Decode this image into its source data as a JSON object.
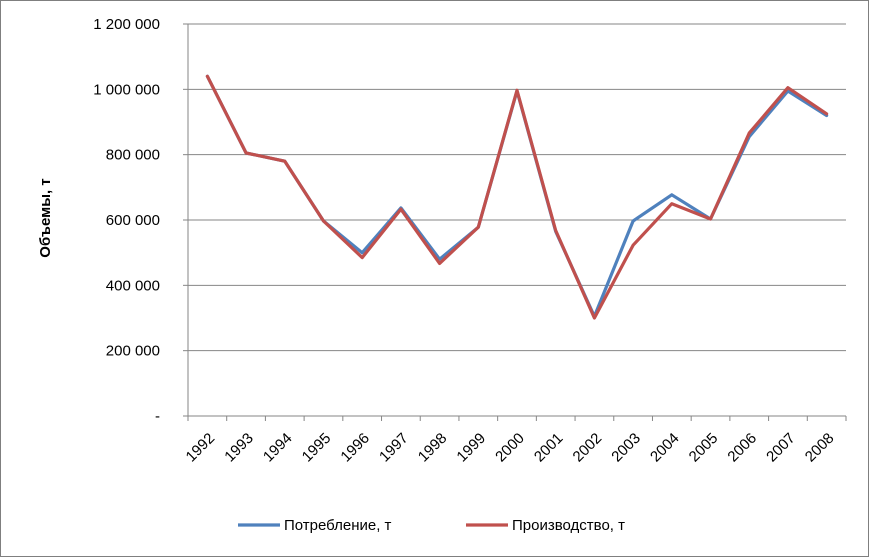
{
  "chart_data": {
    "type": "line",
    "title": "",
    "xlabel": "",
    "ylabel": "Объемы, т",
    "ylim": [
      0,
      1200000
    ],
    "y_ticks": [
      {
        "value": 0,
        "label": "-"
      },
      {
        "value": 200000,
        "label": "200 000"
      },
      {
        "value": 400000,
        "label": "400 000"
      },
      {
        "value": 600000,
        "label": "600 000"
      },
      {
        "value": 800000,
        "label": "800 000"
      },
      {
        "value": 1000000,
        "label": "1 000 000"
      },
      {
        "value": 1200000,
        "label": "1 200 000"
      }
    ],
    "categories": [
      "1992",
      "1993",
      "1994",
      "1995",
      "1996",
      "1997",
      "1998",
      "1999",
      "2000",
      "2001",
      "2002",
      "2003",
      "2004",
      "2005",
      "2006",
      "2007",
      "2008"
    ],
    "grid": true,
    "legend_position": "bottom",
    "series": [
      {
        "name": "Потребление, т",
        "color": "#4f81bd",
        "values": [
          1040000,
          805000,
          780000,
          597000,
          500000,
          637000,
          480000,
          578000,
          995000,
          565000,
          305000,
          597000,
          677000,
          603000,
          855000,
          995000,
          920000
        ]
      },
      {
        "name": "Производство, т",
        "color": "#c0504d",
        "values": [
          1040000,
          805000,
          780000,
          597000,
          485000,
          633000,
          467000,
          578000,
          997000,
          568000,
          300000,
          523000,
          650000,
          603000,
          866000,
          1005000,
          925000
        ]
      }
    ]
  }
}
